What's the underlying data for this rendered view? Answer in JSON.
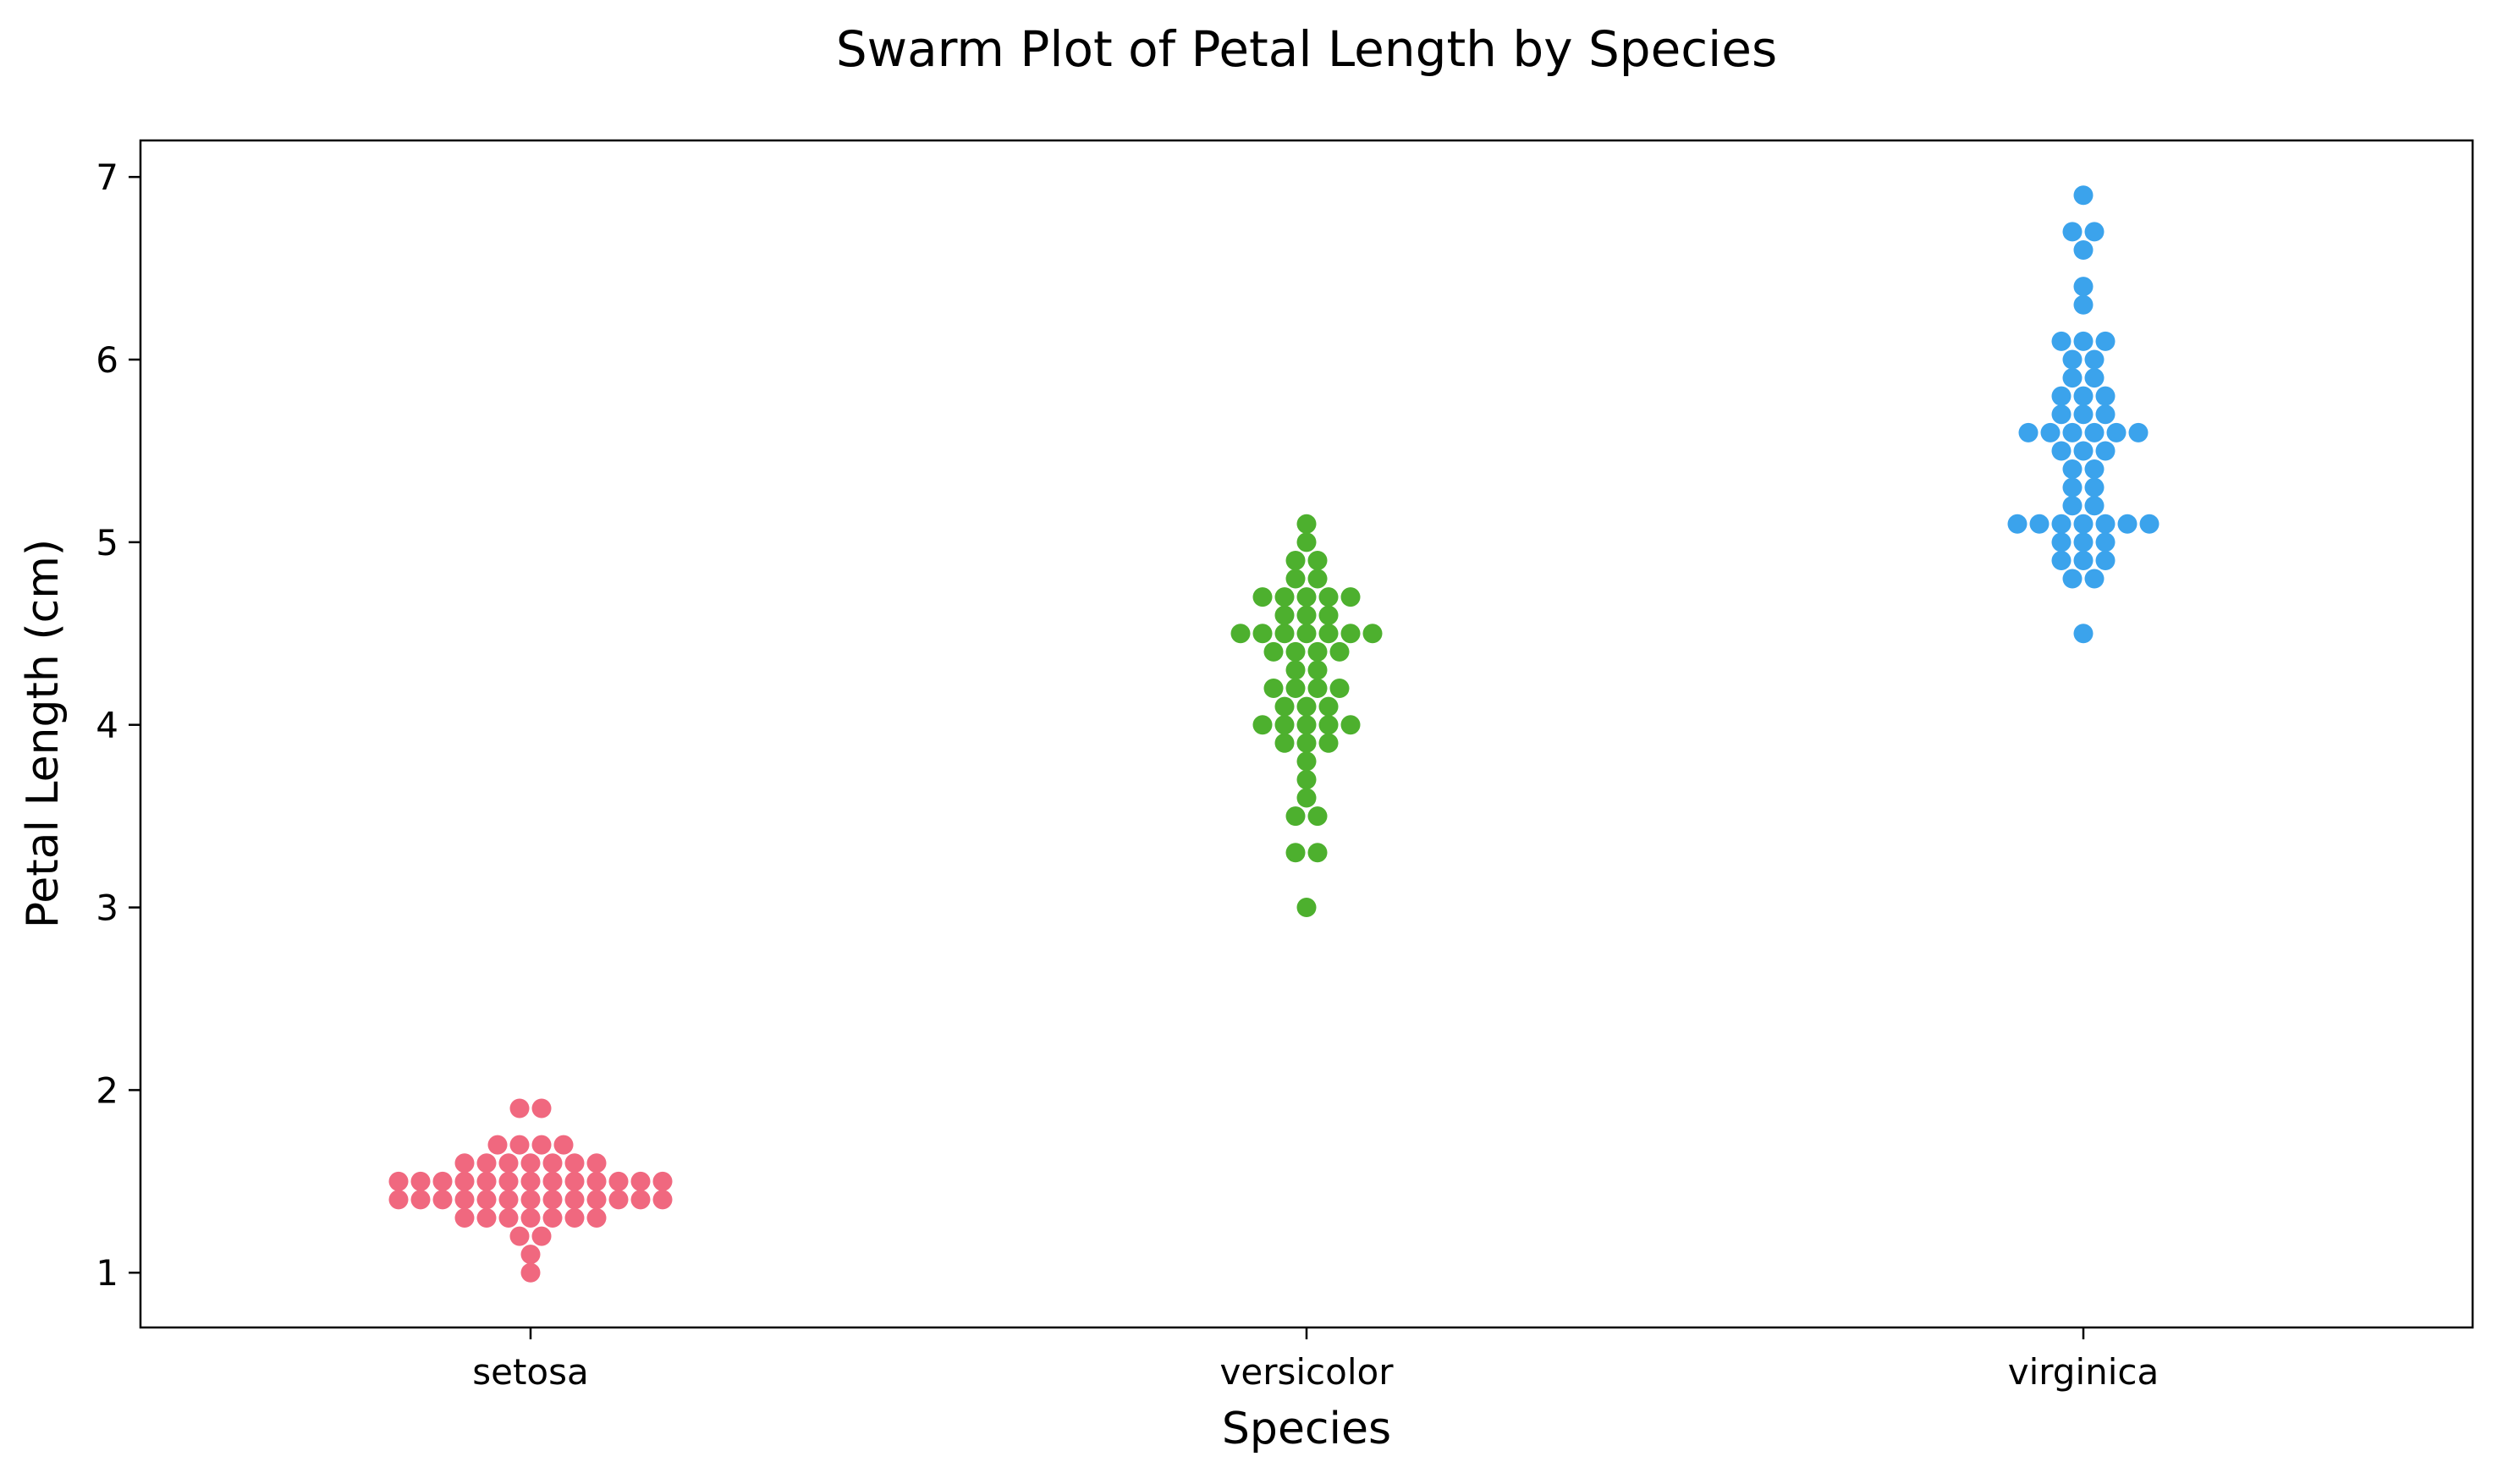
{
  "chart_data": {
    "type": "scatter",
    "subtype": "swarm",
    "title": "Swarm Plot of Petal Length by Species",
    "xlabel": "Species",
    "ylabel": "Petal Length (cm)",
    "categories": [
      "setosa",
      "versicolor",
      "virginica"
    ],
    "ylim": [
      0.7,
      7.2
    ],
    "yticks": [
      1,
      2,
      3,
      4,
      5,
      6,
      7
    ],
    "grid": false,
    "legend": "none",
    "series": [
      {
        "category": "setosa",
        "color": "#f0687f",
        "values": [
          1.0,
          1.1,
          1.2,
          1.2,
          1.3,
          1.3,
          1.3,
          1.3,
          1.3,
          1.3,
          1.3,
          1.4,
          1.4,
          1.4,
          1.4,
          1.4,
          1.4,
          1.4,
          1.4,
          1.4,
          1.4,
          1.4,
          1.4,
          1.4,
          1.5,
          1.5,
          1.5,
          1.5,
          1.5,
          1.5,
          1.5,
          1.5,
          1.5,
          1.5,
          1.5,
          1.5,
          1.5,
          1.6,
          1.6,
          1.6,
          1.6,
          1.6,
          1.6,
          1.6,
          1.7,
          1.7,
          1.7,
          1.7,
          1.9,
          1.9
        ]
      },
      {
        "category": "versicolor",
        "color": "#4db02e",
        "values": [
          3.0,
          3.3,
          3.3,
          3.5,
          3.5,
          3.6,
          3.7,
          3.8,
          3.9,
          3.9,
          3.9,
          4.0,
          4.0,
          4.0,
          4.0,
          4.0,
          4.1,
          4.1,
          4.1,
          4.2,
          4.2,
          4.2,
          4.2,
          4.3,
          4.3,
          4.4,
          4.4,
          4.4,
          4.4,
          4.5,
          4.5,
          4.5,
          4.5,
          4.5,
          4.5,
          4.5,
          4.6,
          4.6,
          4.6,
          4.7,
          4.7,
          4.7,
          4.7,
          4.7,
          4.8,
          4.8,
          4.9,
          4.9,
          5.0,
          5.1
        ]
      },
      {
        "category": "virginica",
        "color": "#3ba3ec",
        "values": [
          4.5,
          4.8,
          4.8,
          4.9,
          4.9,
          4.9,
          5.0,
          5.0,
          5.0,
          5.1,
          5.1,
          5.1,
          5.1,
          5.1,
          5.1,
          5.1,
          5.2,
          5.2,
          5.3,
          5.3,
          5.4,
          5.4,
          5.5,
          5.5,
          5.5,
          5.6,
          5.6,
          5.6,
          5.6,
          5.6,
          5.6,
          5.7,
          5.7,
          5.7,
          5.8,
          5.8,
          5.8,
          5.9,
          5.9,
          6.0,
          6.0,
          6.1,
          6.1,
          6.1,
          6.3,
          6.4,
          6.6,
          6.7,
          6.7,
          6.9
        ]
      }
    ]
  }
}
